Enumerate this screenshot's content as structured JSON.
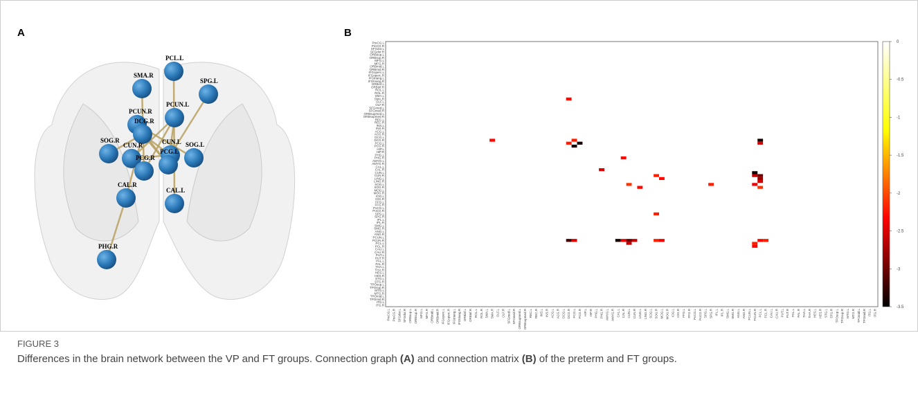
{
  "figure": {
    "panel_a_label": "A",
    "panel_b_label": "B",
    "graph": {
      "nodes": [
        "PCL.L",
        "SPG.L",
        "SMA.R",
        "PCUN.L",
        "PCUN.R",
        "DCG.R",
        "SOG.R",
        "CUN.R",
        "CUN.L",
        "PCG.L",
        "SOG.L",
        "PCG.R",
        "CAL.R",
        "CAL.L",
        "PHG.R"
      ],
      "edges": [
        [
          0,
          13
        ],
        [
          1,
          8
        ],
        [
          2,
          11
        ],
        [
          14,
          12
        ],
        [
          12,
          5
        ],
        [
          4,
          9
        ],
        [
          5,
          8
        ],
        [
          3,
          7
        ],
        [
          3,
          11
        ],
        [
          5,
          9
        ],
        [
          6,
          5
        ],
        [
          4,
          10
        ],
        [
          3,
          9
        ],
        [
          7,
          8
        ]
      ]
    }
  },
  "chart_data": {
    "type": "heatmap",
    "labels": [
      "PreCG.L",
      "PreCG.R",
      "SFGdor.L",
      "SFGdor.R",
      "ORBsup.L",
      "ORBsup.R",
      "MFG.L",
      "MFG.R",
      "ORBmid.L",
      "ORBmid.R",
      "IFGoperc.L",
      "IFGoperc.R",
      "IFGtriang.L",
      "IFGtriang.R",
      "ORBinf.L",
      "ORBinf.R",
      "ROL.L",
      "ROL.R",
      "SMA.L",
      "SMA.R",
      "OLF.L",
      "OLF.R",
      "SFGmed.L",
      "SFGmed.R",
      "ORBsupmed.L",
      "ORBsupmed.R",
      "REC.L",
      "REC.R",
      "INS.L",
      "INS.R",
      "ACG.L",
      "ACG.R",
      "DCG.L",
      "DCG.R",
      "PCG.L",
      "PCG.R",
      "HIP.L",
      "HIP.R",
      "PHG.L",
      "PHG.R",
      "AMYG.L",
      "AMYG.R",
      "CAL.L",
      "CAL.R",
      "CUN.L",
      "CUN.R",
      "LING.L",
      "LING.R",
      "SOG.L",
      "SOG.R",
      "MOG.L",
      "MOG.R",
      "IOG.L",
      "IOG.R",
      "FFG.L",
      "FFG.R",
      "PoCG.L",
      "PoCG.R",
      "SPG.L",
      "SPG.R",
      "IPL.L",
      "IPL.R",
      "SMG.L",
      "SMG.R",
      "ANG.L",
      "ANG.R",
      "PCUN.L",
      "PCUN.R",
      "PCL.L",
      "PCL.R",
      "CAU.L",
      "CAU.R",
      "PUT.L",
      "PUT.R",
      "PAL.L",
      "PAL.R",
      "THA.L",
      "THA.R",
      "HES.L",
      "HES.R",
      "STG.L",
      "STG.R",
      "TPOsup.L",
      "TPOsup.R",
      "MTG.L",
      "MTG.R",
      "TPOmid.L",
      "TPOmid.R",
      "ITG.L",
      "ITG.R"
    ],
    "cells": [
      [
        19,
        33,
        -2.3
      ],
      [
        33,
        19,
        -2.3
      ],
      [
        33,
        34,
        -2.2
      ],
      [
        34,
        33,
        -2.2
      ],
      [
        34,
        35,
        -3.4
      ],
      [
        35,
        34,
        -3.4
      ],
      [
        33,
        68,
        -3.4
      ],
      [
        34,
        68,
        -2.5
      ],
      [
        39,
        43,
        -2.3
      ],
      [
        43,
        39,
        -2.5
      ],
      [
        44,
        67,
        -3.4
      ],
      [
        45,
        67,
        -2.6
      ],
      [
        45,
        68,
        -3.0
      ],
      [
        46,
        68,
        -2.8
      ],
      [
        47,
        68,
        -2.5
      ],
      [
        45,
        49,
        -2.2
      ],
      [
        46,
        50,
        -2.3
      ],
      [
        48,
        44,
        -2.1
      ],
      [
        49,
        46,
        -2.3
      ],
      [
        48,
        59,
        -2.2
      ],
      [
        48,
        67,
        -2.4
      ],
      [
        49,
        68,
        -2.1
      ],
      [
        58,
        49,
        -2.2
      ],
      [
        67,
        33,
        -3.2
      ],
      [
        67,
        34,
        -2.5
      ],
      [
        67,
        42,
        -3.4
      ],
      [
        67,
        43,
        -2.4
      ],
      [
        67,
        44,
        -3.0
      ],
      [
        68,
        44,
        -2.6
      ],
      [
        67,
        45,
        -2.6
      ],
      [
        67,
        49,
        -2.2
      ],
      [
        67,
        50,
        -2.4
      ],
      [
        67,
        68,
        -2.3
      ],
      [
        67,
        69,
        -2.2
      ],
      [
        68,
        67,
        -2.2
      ],
      [
        69,
        67,
        -2.3
      ]
    ],
    "clim": [
      -3.5,
      0
    ],
    "cticks": [
      0,
      -0.5,
      -1,
      -1.5,
      -2,
      -2.5,
      -3,
      -3.5
    ],
    "colormap": [
      "#000000",
      "#ff0000",
      "#ffff00",
      "#ffffff"
    ]
  },
  "caption": {
    "label": "FIGURE 3",
    "parts": [
      "Differences in the brain network between the VP and FT groups. Connection graph ",
      "(A)",
      " and connection matrix ",
      "(B)",
      " of the preterm and FT groups."
    ]
  }
}
